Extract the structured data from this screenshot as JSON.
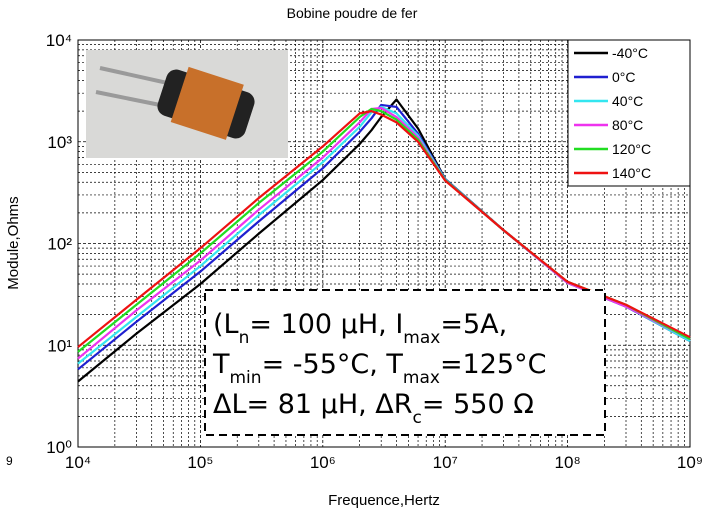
{
  "chart_data": {
    "type": "line",
    "title": "Bobine poudre de fer",
    "xlabel": "Frequence,Hertz",
    "ylabel": "Module,Ohms",
    "log_x": true,
    "log_y": true,
    "grid": true,
    "minor_grid": true,
    "legend": "upper right",
    "xlim": [
      10000,
      1000000000
    ],
    "xticks": [
      {
        "value": 10000,
        "label": "10⁴"
      },
      {
        "value": 100000,
        "label": "10⁵"
      },
      {
        "value": 1000000,
        "label": "10⁶"
      },
      {
        "value": 10000000,
        "label": "10⁷"
      },
      {
        "value": 100000000,
        "label": "10⁸"
      },
      {
        "value": 1000000000,
        "label": "10⁹"
      }
    ],
    "ylim": [
      1,
      10000
    ],
    "yticks": [
      {
        "value": 1,
        "label": "10⁰"
      },
      {
        "value": 10,
        "label": "10¹"
      },
      {
        "value": 100,
        "label": "10²"
      },
      {
        "value": 1000,
        "label": "10³"
      },
      {
        "value": 10000,
        "label": "10⁴"
      }
    ],
    "x": [
      10000,
      30000,
      100000,
      300000,
      1000000,
      2000000,
      2500000,
      3000000,
      4000000,
      6000000,
      10000000,
      30000000,
      100000000,
      300000000,
      1000000000
    ],
    "series": [
      {
        "name": "-40°C",
        "color": "#000000",
        "values": [
          4.4,
          13,
          40,
          125,
          420,
          950,
          1300,
          1750,
          2600,
          1350,
          430,
          135,
          41,
          24,
          11
        ]
      },
      {
        "name": "0°C",
        "color": "#1f1fd0",
        "values": [
          5.8,
          17,
          53,
          165,
          550,
          1250,
          1700,
          2300,
          2200,
          1200,
          430,
          135,
          41,
          24,
          11
        ]
      },
      {
        "name": "40°C",
        "color": "#33e6f0",
        "values": [
          6.6,
          19,
          60,
          190,
          630,
          1400,
          1950,
          2200,
          1900,
          1150,
          425,
          135,
          41,
          24,
          11
        ]
      },
      {
        "name": "80°C",
        "color": "#ee33ee",
        "values": [
          7.4,
          22,
          68,
          215,
          700,
          1550,
          2100,
          2150,
          1750,
          1100,
          420,
          135,
          41,
          24,
          11.5
        ]
      },
      {
        "name": "120°C",
        "color": "#22dd22",
        "values": [
          8.6,
          25,
          80,
          250,
          800,
          1750,
          2100,
          2000,
          1650,
          1050,
          420,
          135,
          42,
          25,
          11.5
        ]
      },
      {
        "name": "140°C",
        "color": "#ee1111",
        "values": [
          9.6,
          28,
          90,
          280,
          900,
          1900,
          2000,
          1850,
          1550,
          1000,
          415,
          135,
          42,
          25,
          12
        ]
      }
    ],
    "annotation": {
      "lines": [
        [
          {
            "text": "(L"
          },
          {
            "text": "n",
            "subscript": true
          },
          {
            "text": "= 100 µH, I"
          },
          {
            "text": "max",
            "subscript": true
          },
          {
            "text": "=5A,"
          }
        ],
        [
          {
            "text": "T"
          },
          {
            "text": "min",
            "subscript": true
          },
          {
            "text": "= -55°C, T"
          },
          {
            "text": "max",
            "subscript": true
          },
          {
            "text": "=125°C"
          }
        ],
        [
          {
            "text": "ΔL= 81 µH,  ΔR"
          },
          {
            "text": "c",
            "subscript": true
          },
          {
            "text": "= 550 Ω"
          }
        ]
      ]
    },
    "corner_text": "9"
  }
}
